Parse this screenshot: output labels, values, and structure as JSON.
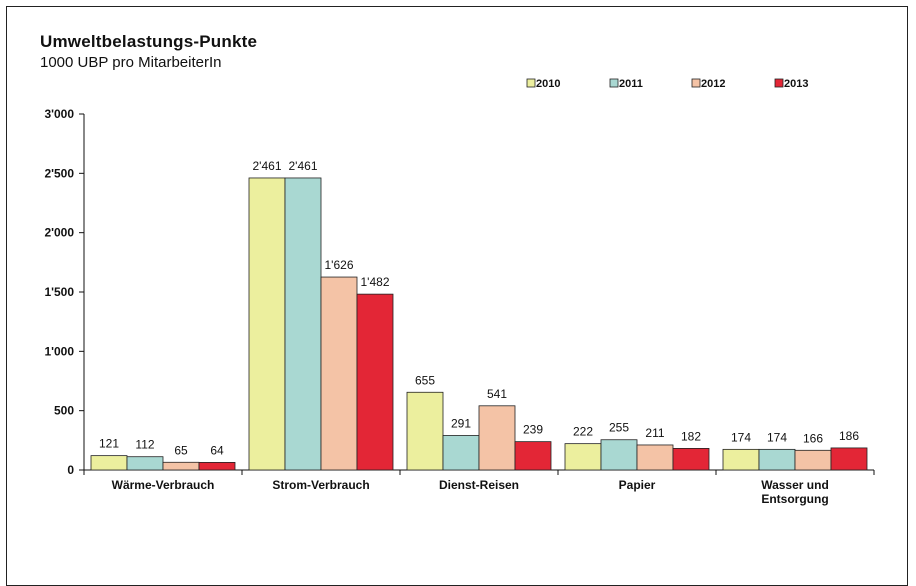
{
  "chart_data": {
    "type": "bar",
    "title": "Umweltbelastungs-Punkte",
    "subtitle": "1000 UBP pro MitarbeiterIn",
    "categories": [
      [
        "Wärme-Verbrauch"
      ],
      [
        "Strom-Verbrauch"
      ],
      [
        "Dienst-Reisen"
      ],
      [
        "Papier"
      ],
      [
        "Wasser und",
        "Entsorgung"
      ]
    ],
    "series": [
      {
        "name": "2010",
        "color": "#ecef9e",
        "values": [
          121,
          2461,
          655,
          222,
          174
        ],
        "labels": [
          "121",
          "2'461",
          "655",
          "222",
          "174"
        ]
      },
      {
        "name": "2011",
        "color": "#a9d8d2",
        "values": [
          112,
          2461,
          291,
          255,
          174
        ],
        "labels": [
          "112",
          "2'461",
          "291",
          "255",
          "174"
        ]
      },
      {
        "name": "2012",
        "color": "#f4c3a6",
        "values": [
          65,
          1626,
          541,
          211,
          166
        ],
        "labels": [
          "65",
          "1'626",
          "541",
          "211",
          "166"
        ]
      },
      {
        "name": "2013",
        "color": "#e32636",
        "values": [
          64,
          1482,
          239,
          182,
          186
        ],
        "labels": [
          "64",
          "1'482",
          "239",
          "182",
          "186"
        ]
      }
    ],
    "ylim": [
      0,
      3000
    ],
    "yticks": [
      0,
      500,
      1000,
      1500,
      2000,
      2500,
      3000
    ],
    "ytick_labels": [
      "0",
      "500",
      "1'000",
      "1'500",
      "2'000",
      "2'500",
      "3'000"
    ],
    "grid": false,
    "legend_position": "top-right"
  }
}
